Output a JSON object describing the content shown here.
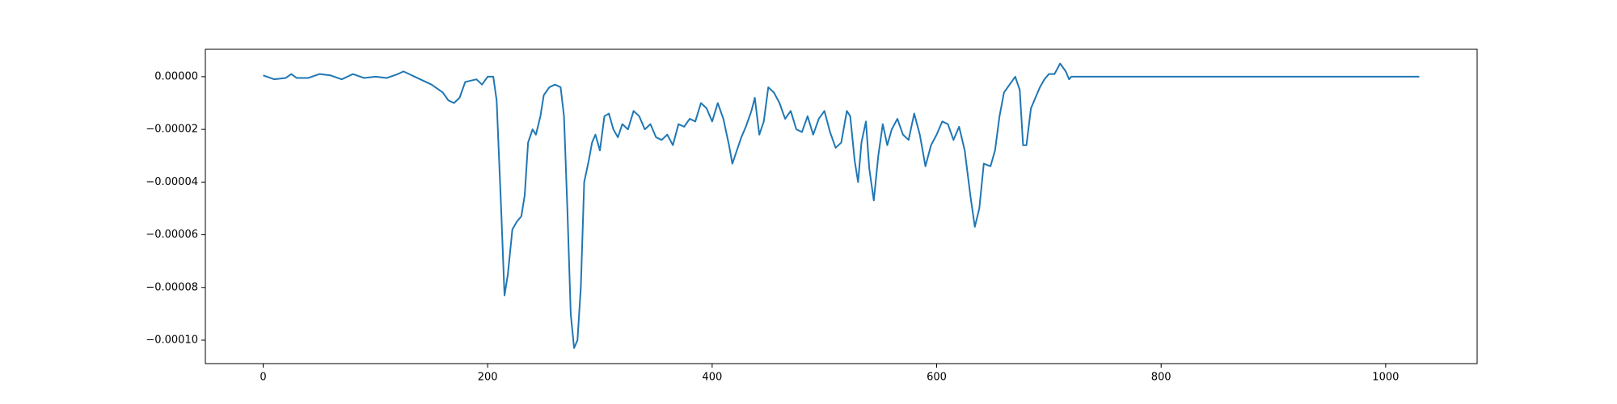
{
  "chart_data": {
    "type": "line",
    "x": [
      0,
      10,
      20,
      25,
      30,
      40,
      50,
      60,
      70,
      80,
      90,
      100,
      110,
      120,
      125,
      130,
      140,
      150,
      160,
      165,
      170,
      175,
      180,
      190,
      195,
      200,
      205,
      208,
      212,
      215,
      218,
      222,
      226,
      230,
      233,
      236,
      240,
      243,
      247,
      250,
      255,
      260,
      265,
      268,
      271,
      274,
      277,
      280,
      283,
      286,
      290,
      293,
      296,
      300,
      304,
      308,
      312,
      316,
      320,
      325,
      330,
      335,
      340,
      345,
      350,
      355,
      360,
      365,
      370,
      375,
      380,
      385,
      390,
      395,
      400,
      405,
      410,
      415,
      418,
      422,
      426,
      430,
      435,
      438,
      442,
      446,
      450,
      455,
      460,
      465,
      470,
      475,
      480,
      485,
      490,
      495,
      500,
      505,
      510,
      515,
      520,
      523,
      527,
      530,
      533,
      537,
      540,
      544,
      548,
      552,
      556,
      560,
      565,
      570,
      575,
      580,
      585,
      590,
      595,
      600,
      605,
      610,
      615,
      620,
      625,
      630,
      634,
      638,
      642,
      648,
      652,
      656,
      660,
      665,
      670,
      674,
      677,
      680,
      684,
      688,
      692,
      696,
      700,
      705,
      710,
      715,
      718,
      720,
      1030
    ],
    "series": [
      {
        "color": "#1f77b4",
        "values": [
          5e-07,
          -1e-06,
          -5e-07,
          1e-06,
          -5e-07,
          -5e-07,
          1e-06,
          5e-07,
          -1e-06,
          1e-06,
          -5e-07,
          0,
          -5e-07,
          1e-06,
          2e-06,
          1e-06,
          -1e-06,
          -3e-06,
          -6e-06,
          -9e-06,
          -1e-05,
          -8e-06,
          -2e-06,
          -1e-06,
          -3e-06,
          0,
          0,
          -9e-06,
          -5e-05,
          -8.3e-05,
          -7.5e-05,
          -5.8e-05,
          -5.5e-05,
          -5.3e-05,
          -4.5e-05,
          -2.5e-05,
          -2e-05,
          -2.2e-05,
          -1.5e-05,
          -7e-06,
          -4e-06,
          -3e-06,
          -4e-06,
          -1.5e-05,
          -5e-05,
          -9e-05,
          -0.000103,
          -0.0001,
          -8e-05,
          -4e-05,
          -3.2e-05,
          -2.5e-05,
          -2.2e-05,
          -2.8e-05,
          -1.5e-05,
          -1.4e-05,
          -2e-05,
          -2.3e-05,
          -1.8e-05,
          -2e-05,
          -1.3e-05,
          -1.5e-05,
          -2e-05,
          -1.8e-05,
          -2.3e-05,
          -2.4e-05,
          -2.2e-05,
          -2.6e-05,
          -1.8e-05,
          -1.9e-05,
          -1.6e-05,
          -1.7e-05,
          -1e-05,
          -1.2e-05,
          -1.7e-05,
          -1e-05,
          -1.6e-05,
          -2.6e-05,
          -3.3e-05,
          -2.8e-05,
          -2.3e-05,
          -1.9e-05,
          -1.3e-05,
          -8e-06,
          -2.2e-05,
          -1.7e-05,
          -4e-06,
          -6e-06,
          -1e-05,
          -1.6e-05,
          -1.3e-05,
          -2e-05,
          -2.1e-05,
          -1.5e-05,
          -2.2e-05,
          -1.6e-05,
          -1.3e-05,
          -2.1e-05,
          -2.7e-05,
          -2.5e-05,
          -1.3e-05,
          -1.5e-05,
          -3.2e-05,
          -4e-05,
          -2.5e-05,
          -1.7e-05,
          -3.5e-05,
          -4.7e-05,
          -3e-05,
          -1.8e-05,
          -2.6e-05,
          -2e-05,
          -1.6e-05,
          -2.2e-05,
          -2.4e-05,
          -1.4e-05,
          -2.2e-05,
          -3.4e-05,
          -2.6e-05,
          -2.2e-05,
          -1.7e-05,
          -1.8e-05,
          -2.4e-05,
          -1.9e-05,
          -2.8e-05,
          -4.5e-05,
          -5.7e-05,
          -5e-05,
          -3.3e-05,
          -3.4e-05,
          -2.8e-05,
          -1.5e-05,
          -6e-06,
          -3e-06,
          0,
          -5e-06,
          -2.6e-05,
          -2.6e-05,
          -1.2e-05,
          -8e-06,
          -4e-06,
          -1e-06,
          1e-06,
          1e-06,
          5e-06,
          2e-06,
          -1e-06,
          0,
          0
        ]
      }
    ],
    "xlim": [
      -51.5,
      1081.5
    ],
    "ylim": [
      -0.0001089,
      1.04e-05
    ],
    "xticks": [
      0,
      200,
      400,
      600,
      800,
      1000
    ],
    "yticks": [
      {
        "value": 0,
        "label": "0.00000"
      },
      {
        "value": -2e-05,
        "label": "−0.00002"
      },
      {
        "value": -4e-05,
        "label": "−0.00004"
      },
      {
        "value": -6e-05,
        "label": "−0.00006"
      },
      {
        "value": -8e-05,
        "label": "−0.00008"
      },
      {
        "value": -0.0001,
        "label": "−0.00010"
      }
    ]
  }
}
